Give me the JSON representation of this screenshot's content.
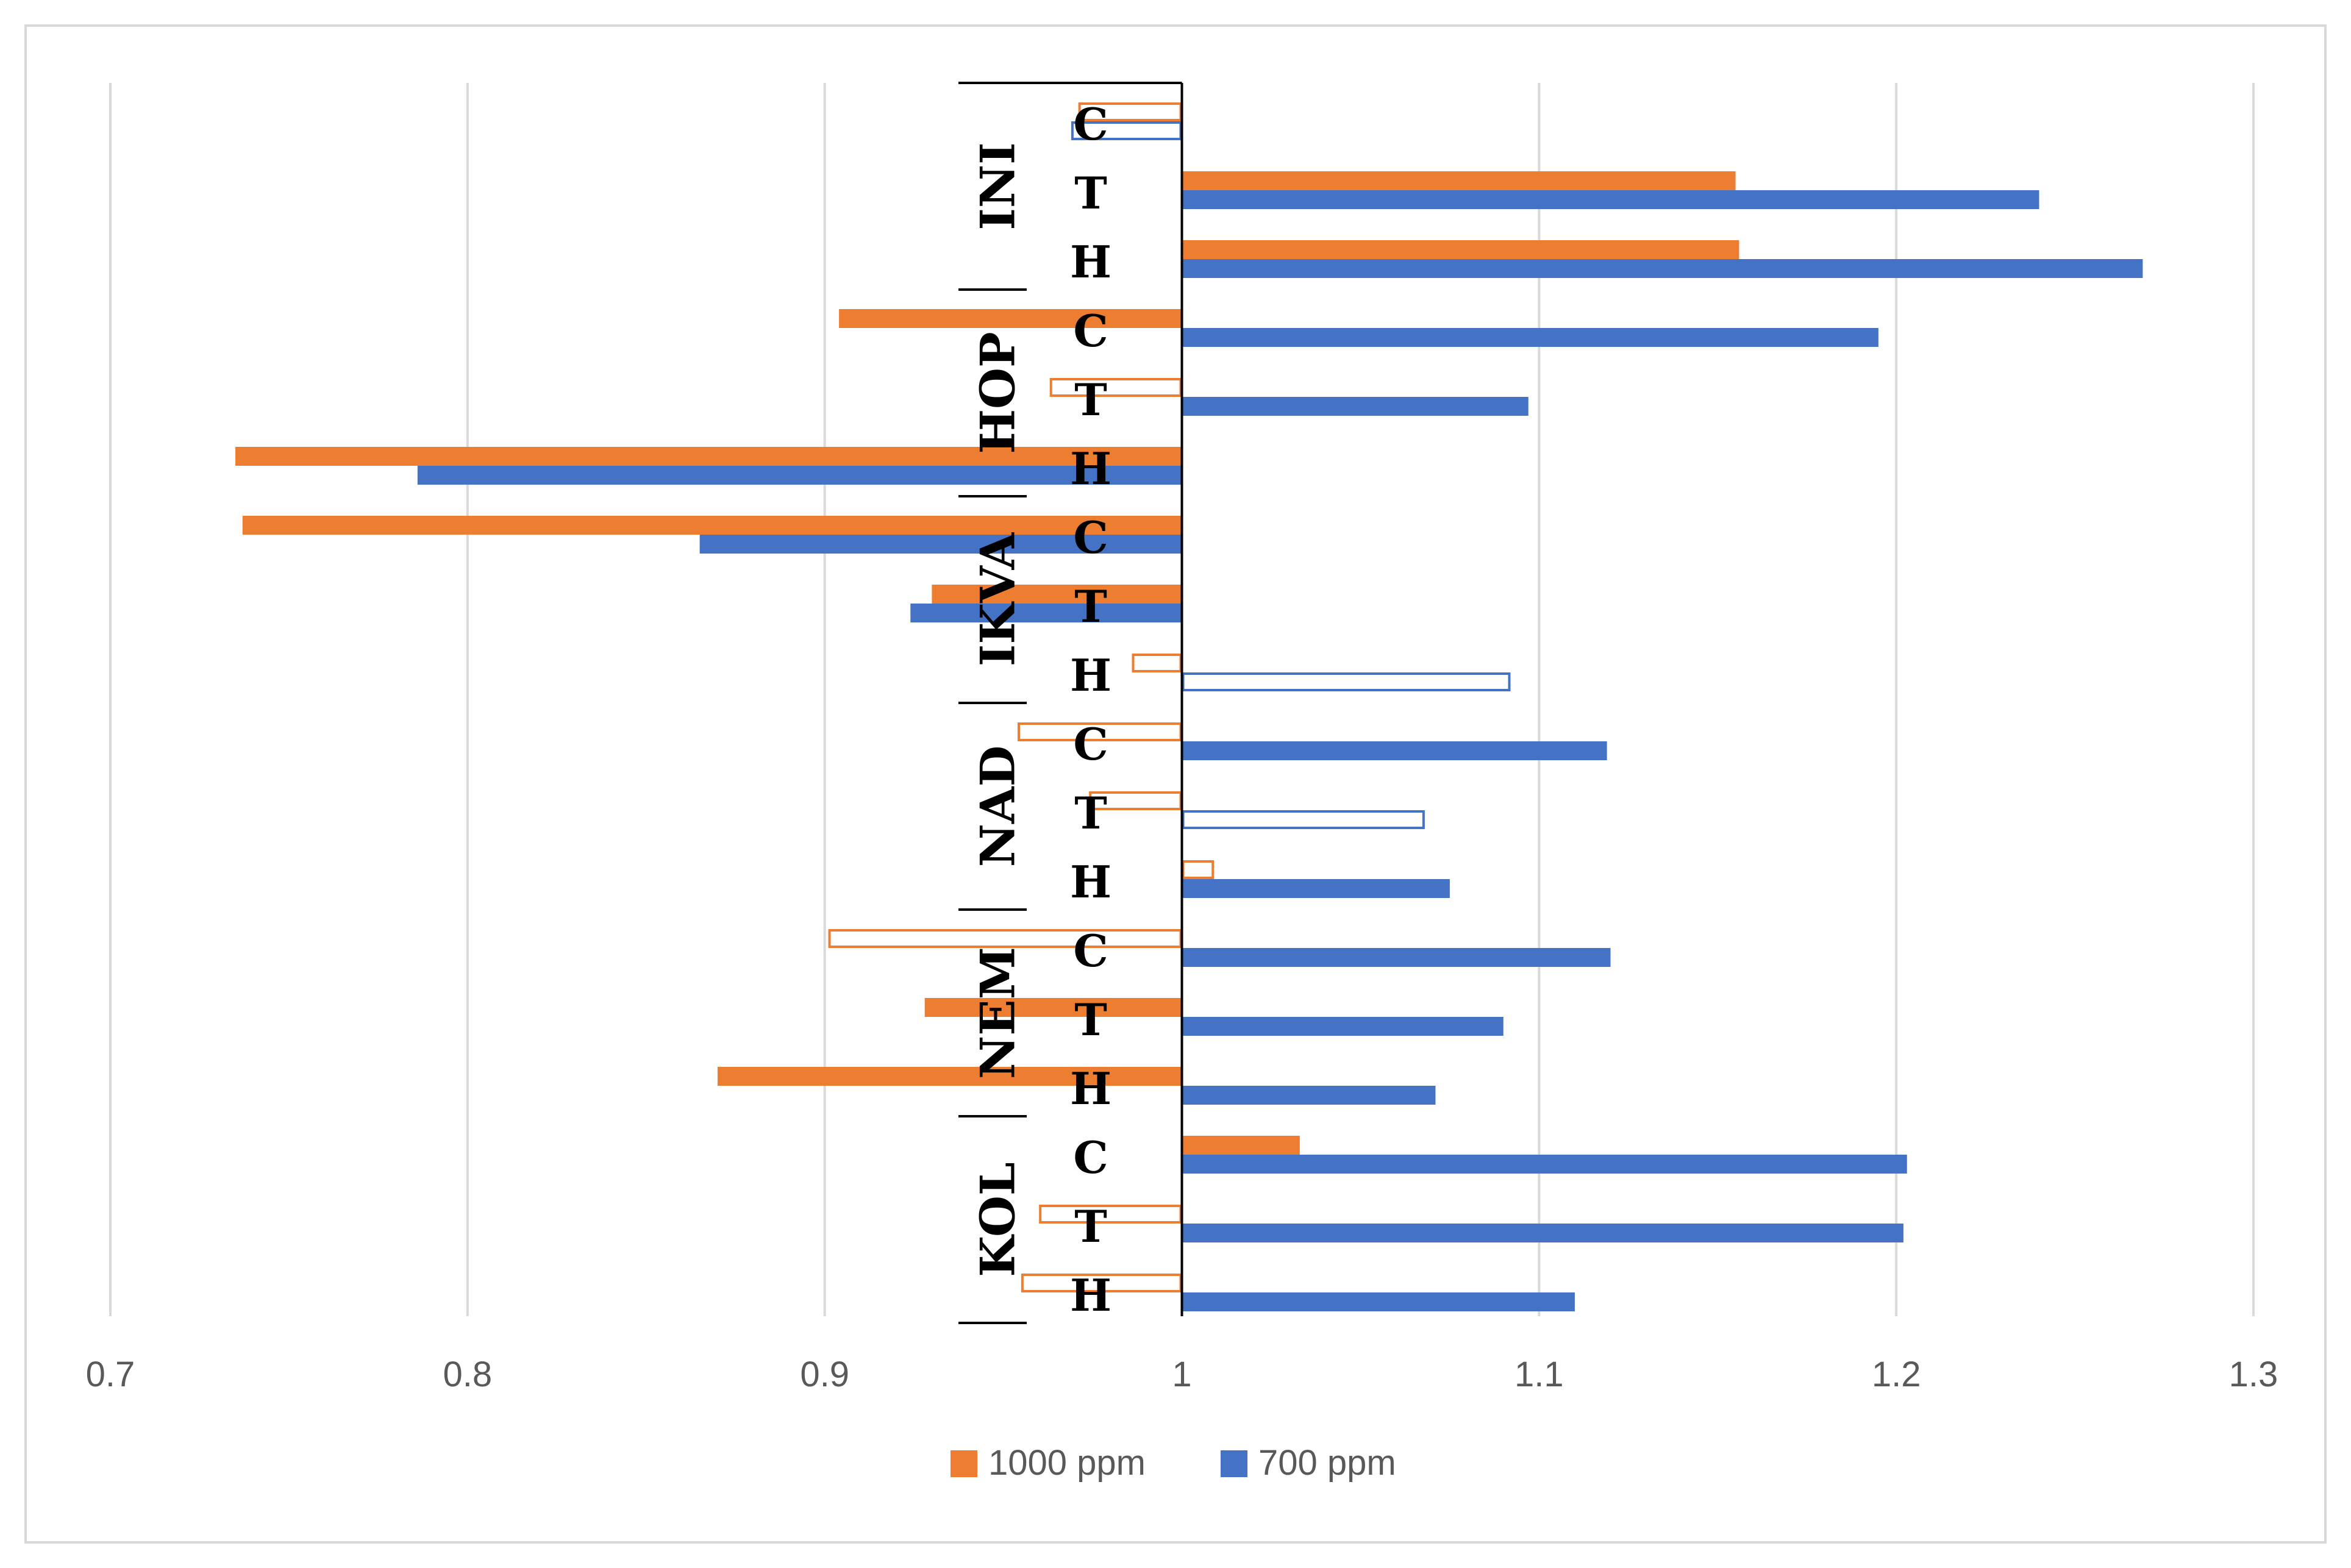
{
  "chart_data": {
    "type": "bar",
    "orientation": "horizontal",
    "baseline": 1,
    "xlim": [
      0.7,
      1.3
    ],
    "x_ticks": [
      "0.7",
      "0.8",
      "0.9",
      "1",
      "1.1",
      "1.2",
      "1.3"
    ],
    "x_tick_values": [
      0.7,
      0.8,
      0.9,
      1.0,
      1.1,
      1.2,
      1.3
    ],
    "grid": true,
    "legend_position": "bottom",
    "series": [
      {
        "name": "1000 ppm",
        "color": "#ED7D31"
      },
      {
        "name": "700 ppm",
        "color": "#4472C4"
      }
    ],
    "groups": [
      {
        "name": "INI",
        "rows": [
          {
            "label": "C",
            "values": [
              0.971,
              0.969
            ],
            "filled": [
              false,
              false
            ]
          },
          {
            "label": "T",
            "values": [
              1.155,
              1.24
            ],
            "filled": [
              true,
              true
            ]
          },
          {
            "label": "H",
            "values": [
              1.156,
              1.269
            ],
            "filled": [
              true,
              true
            ]
          }
        ]
      },
      {
        "name": "HOP",
        "rows": [
          {
            "label": "C",
            "values": [
              0.904,
              1.195
            ],
            "filled": [
              true,
              true
            ]
          },
          {
            "label": "T",
            "values": [
              0.963,
              1.097
            ],
            "filled": [
              false,
              true
            ]
          },
          {
            "label": "H",
            "values": [
              0.735,
              0.786
            ],
            "filled": [
              true,
              true
            ]
          }
        ]
      },
      {
        "name": "IKVA",
        "rows": [
          {
            "label": "C",
            "values": [
              0.737,
              0.865
            ],
            "filled": [
              true,
              true
            ]
          },
          {
            "label": "T",
            "values": [
              0.93,
              0.924
            ],
            "filled": [
              true,
              true
            ]
          },
          {
            "label": "H",
            "values": [
              0.986,
              1.092
            ],
            "filled": [
              false,
              false
            ]
          }
        ]
      },
      {
        "name": "NAD",
        "rows": [
          {
            "label": "C",
            "values": [
              0.954,
              1.119
            ],
            "filled": [
              false,
              true
            ]
          },
          {
            "label": "T",
            "values": [
              0.974,
              1.068
            ],
            "filled": [
              false,
              false
            ]
          },
          {
            "label": "H",
            "values": [
              1.009,
              1.075
            ],
            "filled": [
              false,
              true
            ]
          }
        ]
      },
      {
        "name": "NEM",
        "rows": [
          {
            "label": "C",
            "values": [
              0.901,
              1.12
            ],
            "filled": [
              false,
              true
            ]
          },
          {
            "label": "T",
            "values": [
              0.928,
              1.09
            ],
            "filled": [
              true,
              true
            ]
          },
          {
            "label": "H",
            "values": [
              0.87,
              1.071
            ],
            "filled": [
              true,
              true
            ]
          }
        ]
      },
      {
        "name": "KOL",
        "rows": [
          {
            "label": "C",
            "values": [
              1.033,
              1.203
            ],
            "filled": [
              true,
              true
            ]
          },
          {
            "label": "T",
            "values": [
              0.96,
              1.202
            ],
            "filled": [
              false,
              true
            ]
          },
          {
            "label": "H",
            "values": [
              0.955,
              1.11
            ],
            "filled": [
              false,
              true
            ]
          }
        ]
      }
    ]
  }
}
